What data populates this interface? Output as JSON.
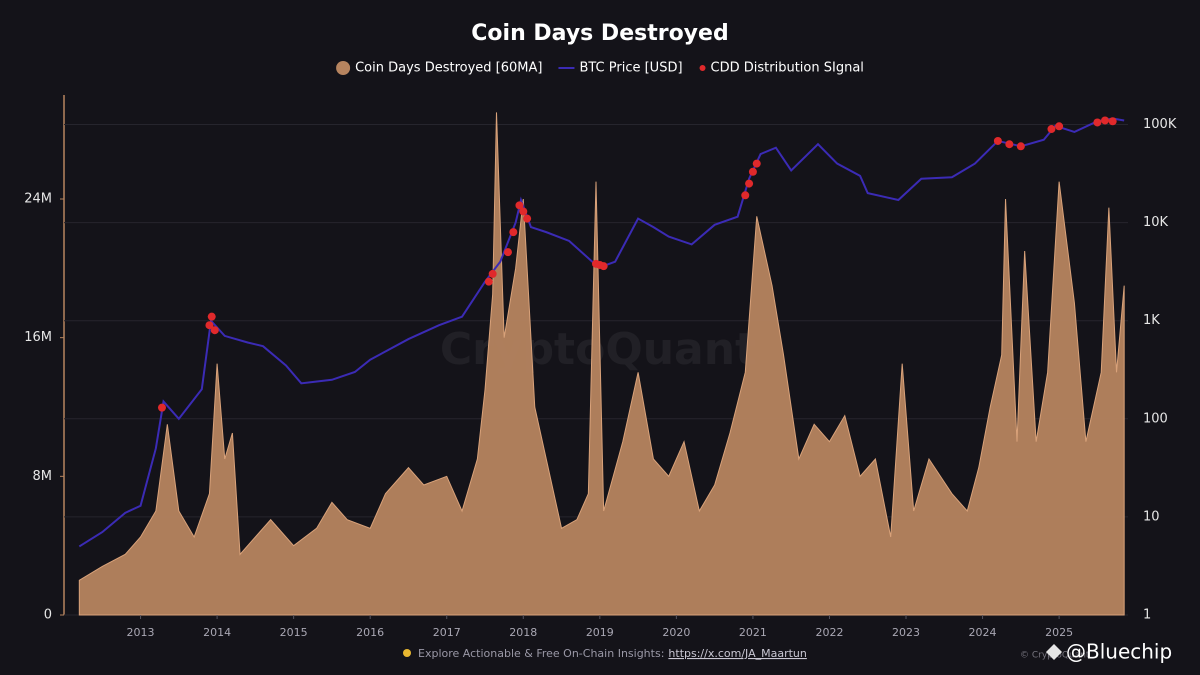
{
  "chart_data": {
    "type": "combo",
    "title": "Coin Days Destroyed",
    "watermark": "CryptoQuant",
    "footer": "Explore Actionable & Free On-Chain Insights:",
    "footer_link": "https://x.com/JA_Maartun",
    "copyright": "© CryptoQuant",
    "credit": "@Bluechip",
    "xlim": [
      2012,
      2025.9
    ],
    "xticks": [
      2013,
      2014,
      2015,
      2016,
      2017,
      2018,
      2019,
      2020,
      2021,
      2022,
      2023,
      2024,
      2025
    ],
    "ylim": [
      0,
      30000000
    ],
    "yticks": [
      0,
      {
        "value": 8000000,
        "label": "8M"
      },
      {
        "value": 16000000,
        "label": "16M"
      },
      {
        "value": 24000000,
        "label": "24M"
      }
    ],
    "y2lim": [
      1,
      200000
    ],
    "y2scale": "log",
    "y2ticks": [
      1,
      10,
      100,
      {
        "value": 1000,
        "label": "1K"
      },
      {
        "value": 10000,
        "label": "10K"
      },
      {
        "value": 100000,
        "label": "100K"
      }
    ],
    "grid": "y2",
    "legend": "top",
    "series": [
      {
        "name": "Coin Days Destroyed [60MA]",
        "type": "area",
        "color": "#b6845f",
        "x": [
          2012.2,
          2012.5,
          2012.8,
          2013.0,
          2013.2,
          2013.35,
          2013.5,
          2013.7,
          2013.9,
          2014.0,
          2014.1,
          2014.2,
          2014.3,
          2014.5,
          2014.7,
          2015.0,
          2015.3,
          2015.5,
          2015.7,
          2016.0,
          2016.2,
          2016.5,
          2016.7,
          2017.0,
          2017.2,
          2017.4,
          2017.5,
          2017.6,
          2017.65,
          2017.75,
          2017.9,
          2018.0,
          2018.15,
          2018.3,
          2018.5,
          2018.7,
          2018.85,
          2018.95,
          2019.05,
          2019.3,
          2019.5,
          2019.7,
          2019.9,
          2020.1,
          2020.3,
          2020.5,
          2020.7,
          2020.9,
          2021.05,
          2021.25,
          2021.4,
          2021.6,
          2021.8,
          2022.0,
          2022.2,
          2022.4,
          2022.6,
          2022.8,
          2022.95,
          2023.1,
          2023.3,
          2023.6,
          2023.8,
          2023.95,
          2024.1,
          2024.25,
          2024.3,
          2024.45,
          2024.55,
          2024.7,
          2024.85,
          2025.0,
          2025.2,
          2025.35,
          2025.55,
          2025.65,
          2025.75,
          2025.85
        ],
        "values": [
          2000000,
          2800000,
          3500000,
          4500000,
          6000000,
          11000000,
          6000000,
          4500000,
          7000000,
          14500000,
          9000000,
          10500000,
          3500000,
          4500000,
          5500000,
          4000000,
          5000000,
          6500000,
          5500000,
          5000000,
          7000000,
          8500000,
          7500000,
          8000000,
          6000000,
          9000000,
          13000000,
          18500000,
          29000000,
          16000000,
          20000000,
          24000000,
          12000000,
          9000000,
          5000000,
          5500000,
          7000000,
          25000000,
          6000000,
          10000000,
          14000000,
          9000000,
          8000000,
          10000000,
          6000000,
          7500000,
          10500000,
          14000000,
          23000000,
          19000000,
          15000000,
          9000000,
          11000000,
          10000000,
          11500000,
          8000000,
          9000000,
          4500000,
          14500000,
          6000000,
          9000000,
          7000000,
          6000000,
          8500000,
          12000000,
          15000000,
          24000000,
          10000000,
          21000000,
          10000000,
          14000000,
          25000000,
          18000000,
          10000000,
          14000000,
          23500000,
          14000000,
          19000000
        ]
      },
      {
        "name": "BTC Price [USD]",
        "type": "line",
        "axis": "y2",
        "color": "#3b2bb5",
        "x": [
          2012.2,
          2012.5,
          2012.8,
          2013.0,
          2013.2,
          2013.3,
          2013.5,
          2013.8,
          2013.92,
          2014.1,
          2014.4,
          2014.6,
          2014.9,
          2015.1,
          2015.5,
          2015.8,
          2016.0,
          2016.5,
          2016.9,
          2017.2,
          2017.5,
          2017.7,
          2017.9,
          2017.97,
          2018.1,
          2018.3,
          2018.6,
          2018.9,
          2019.0,
          2019.2,
          2019.5,
          2019.7,
          2019.9,
          2020.2,
          2020.5,
          2020.8,
          2020.95,
          2021.1,
          2021.3,
          2021.5,
          2021.85,
          2022.1,
          2022.4,
          2022.5,
          2022.9,
          2023.2,
          2023.6,
          2023.9,
          2024.2,
          2024.5,
          2024.8,
          2024.95,
          2025.2,
          2025.5,
          2025.7,
          2025.85
        ],
        "values": [
          5,
          7,
          11,
          13,
          50,
          150,
          100,
          200,
          1000,
          700,
          600,
          550,
          350,
          230,
          250,
          300,
          400,
          650,
          900,
          1100,
          2500,
          4000,
          10000,
          17000,
          9000,
          8000,
          6500,
          4000,
          3500,
          4000,
          11000,
          9000,
          7200,
          6000,
          9500,
          11500,
          28000,
          50000,
          58000,
          34000,
          63000,
          40000,
          30000,
          20000,
          17000,
          28000,
          29000,
          40000,
          68000,
          60000,
          70000,
          97000,
          84000,
          108000,
          115000,
          110000
        ]
      },
      {
        "name": "CDD Distribution SIgnal",
        "type": "scatter",
        "axis": "y2",
        "color": "#e0292b",
        "x": [
          2013.28,
          2013.9,
          2013.93,
          2013.97,
          2017.55,
          2017.6,
          2017.8,
          2017.87,
          2017.95,
          2018.0,
          2018.05,
          2018.95,
          2019.0,
          2019.05,
          2020.9,
          2020.95,
          2021.0,
          2021.05,
          2024.2,
          2024.35,
          2024.5,
          2024.9,
          2025.0,
          2025.5,
          2025.6,
          2025.7
        ],
        "values": [
          130,
          900,
          1100,
          800,
          2500,
          3000,
          5000,
          8000,
          15000,
          13000,
          11000,
          3800,
          3700,
          3600,
          19000,
          25000,
          33000,
          40000,
          68000,
          63000,
          60000,
          90000,
          96000,
          105000,
          110000,
          108000
        ]
      }
    ]
  }
}
